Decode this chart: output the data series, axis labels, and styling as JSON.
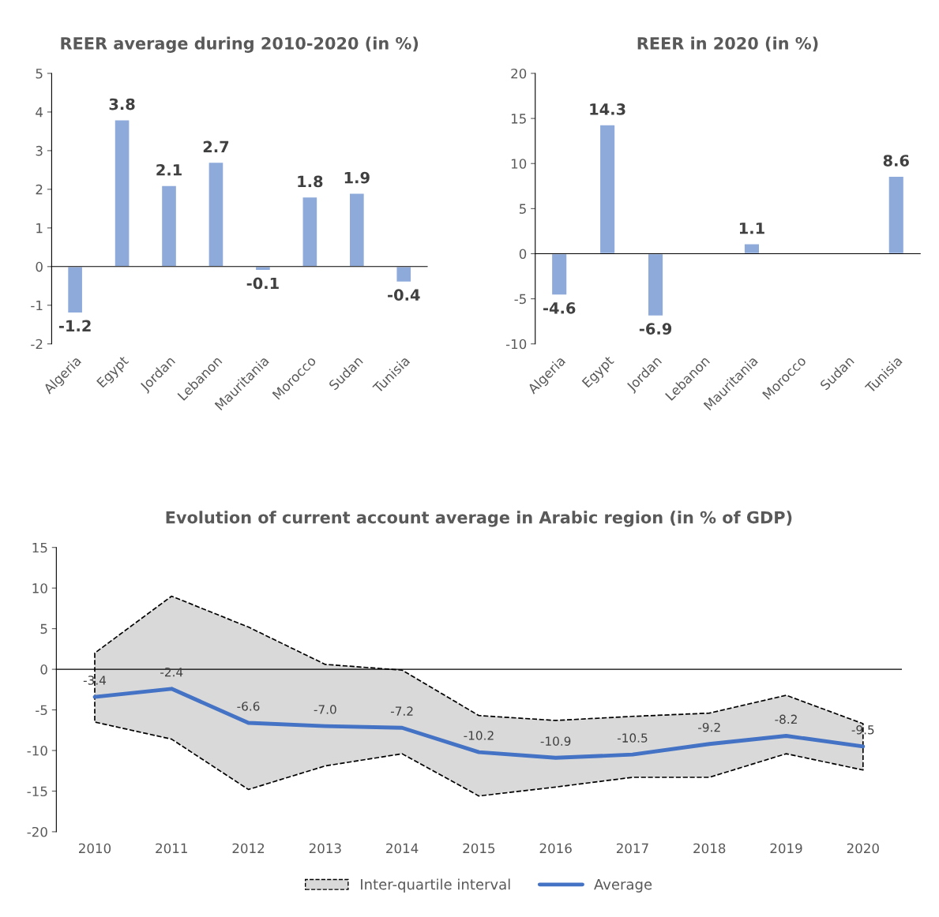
{
  "chart_data": [
    {
      "type": "bar",
      "title": "REER average during 2010-2020 (in %)",
      "categories": [
        "Algeria",
        "Egypt",
        "Jordan",
        "Lebanon",
        "Mauritania",
        "Morocco",
        "Sudan",
        "Tunisia"
      ],
      "values": [
        -1.2,
        3.8,
        2.1,
        2.7,
        -0.1,
        1.8,
        1.9,
        -0.4
      ],
      "color": "#8eaadb",
      "data_labels": true,
      "ylim": [
        -2,
        5
      ],
      "yticks": [
        -2,
        -1,
        0,
        1,
        2,
        3,
        4,
        5
      ]
    },
    {
      "type": "bar",
      "title": "REER in 2020 (in %)",
      "categories": [
        "Algeria",
        "Egypt",
        "Jordan",
        "Lebanon",
        "Mauritania",
        "Morocco",
        "Sudan",
        "Tunisia"
      ],
      "values": [
        -4.6,
        14.3,
        -6.9,
        null,
        1.1,
        null,
        null,
        8.6
      ],
      "color": "#8eaadb",
      "data_labels": true,
      "ylim": [
        -10,
        20
      ],
      "yticks": [
        -10,
        -5,
        0,
        5,
        10,
        15,
        20
      ]
    },
    {
      "type": "line",
      "title": "Evolution of current account average in Arabic region (in % of GDP)",
      "categories": [
        "2010",
        "2011",
        "2012",
        "2013",
        "2014",
        "2015",
        "2016",
        "2017",
        "2018",
        "2019",
        "2020"
      ],
      "series": [
        {
          "name": "Average",
          "type": "line",
          "color": "#4472c4",
          "line_style": "solid",
          "upper": [
            2.0,
            9.0,
            5.2,
            0.6,
            -0.1,
            -5.7,
            -6.3,
            -5.8,
            -5.4,
            -3.2,
            -6.7
          ],
          "lower": [
            -6.5,
            -8.6,
            -14.8,
            -11.9,
            -10.4,
            -15.6,
            -14.5,
            -13.3,
            -13.3,
            -10.4,
            -12.4
          ],
          "values": [
            -3.4,
            -2.4,
            -6.6,
            -7.0,
            -7.2,
            -10.2,
            -10.9,
            -10.5,
            -9.2,
            -8.2,
            -9.5
          ],
          "value_labels": [
            "-3.4",
            "-2.4",
            "-6.6",
            "-7.0",
            "-7.2",
            "-10.2",
            "-10.9",
            "-10.5",
            "-9.2",
            "-8.2",
            "-9.5"
          ]
        }
      ],
      "ylim": [
        -20,
        15
      ],
      "yticks": [
        -20,
        -15,
        -10,
        -5,
        0,
        5,
        10,
        15
      ],
      "legend": "bottom",
      "marker": "none",
      "annotations": [
        "Inter-quartile interval"
      ]
    }
  ]
}
